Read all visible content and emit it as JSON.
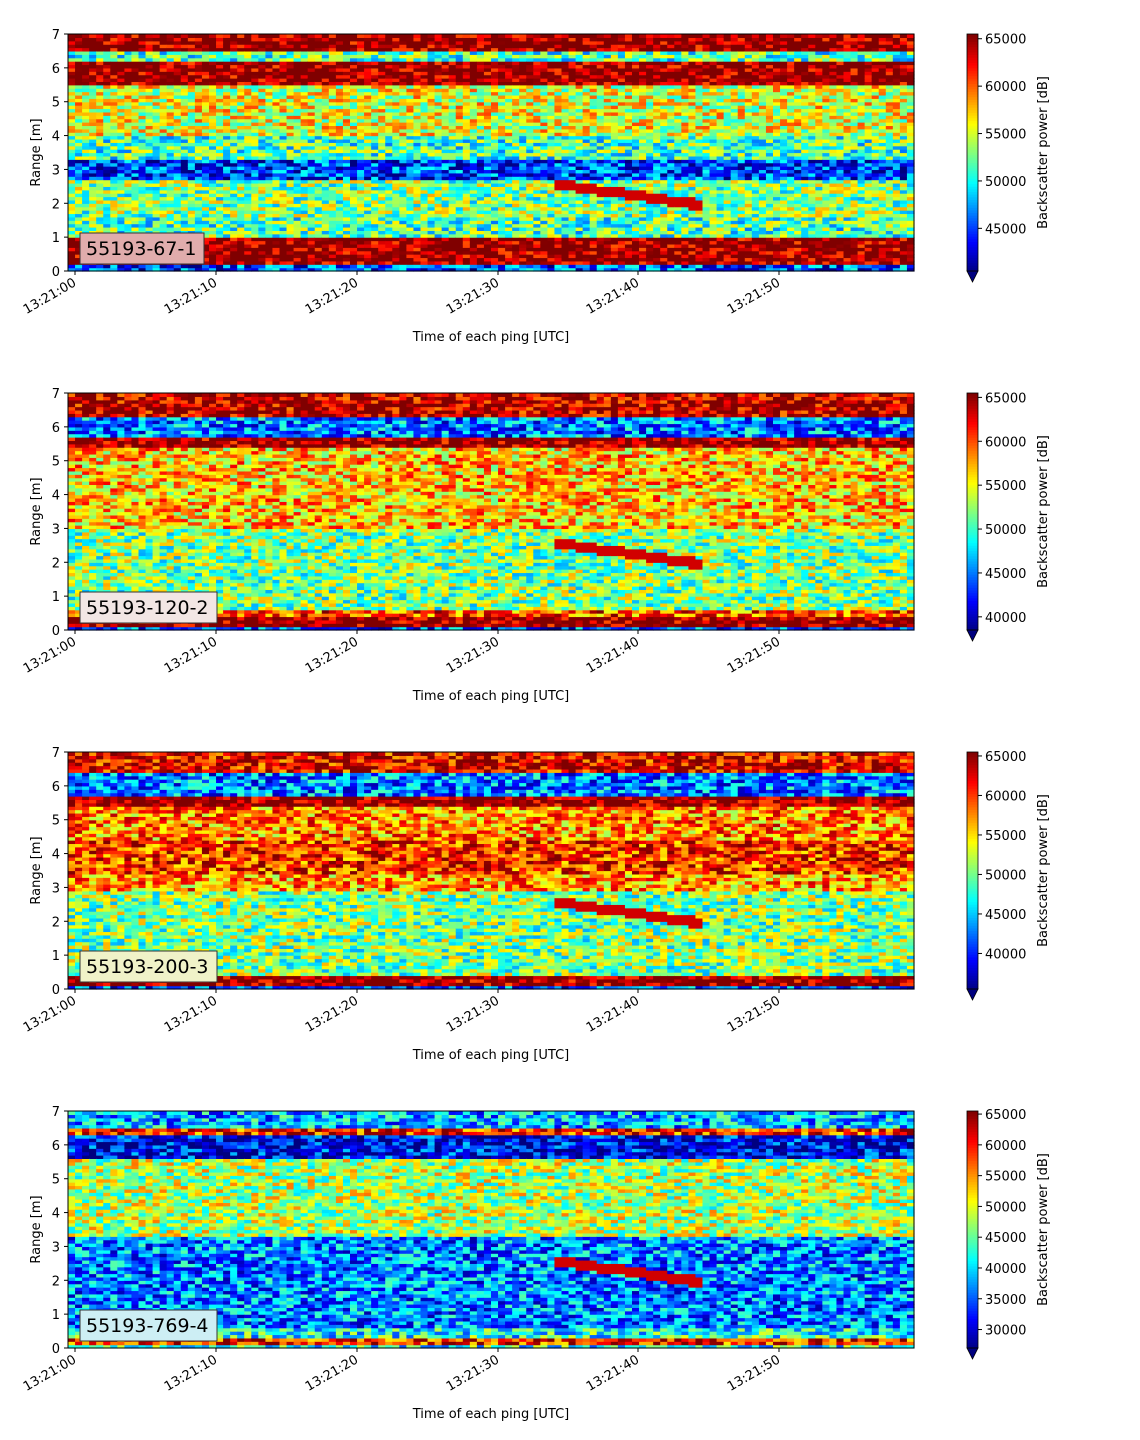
{
  "chart_data": [
    {
      "type": "heatmap",
      "label": "55193-67-1",
      "label_box_color": "#e0acac",
      "x_label": "Time of each ping [UTC]",
      "y_label": "Range [m]",
      "x_ticks": [
        "13:21:00",
        "13:21:10",
        "13:21:20",
        "13:21:30",
        "13:21:40",
        "13:21:50"
      ],
      "y_ticks": [
        "0",
        "1",
        "2",
        "3",
        "4",
        "5",
        "6",
        "7"
      ],
      "ylim": [
        0,
        7
      ],
      "colorbar": {
        "label": "Backscatter power [dB]",
        "ticks": [
          "45000",
          "50000",
          "55000",
          "60000",
          "65000"
        ],
        "range": [
          40500,
          65500
        ]
      },
      "profile": "p1"
    },
    {
      "type": "heatmap",
      "label": "55193-120-2",
      "label_box_color": "#f2e6e4",
      "x_label": "Time of each ping [UTC]",
      "y_label": "Range [m]",
      "x_ticks": [
        "13:21:00",
        "13:21:10",
        "13:21:20",
        "13:21:30",
        "13:21:40",
        "13:21:50"
      ],
      "y_ticks": [
        "0",
        "1",
        "2",
        "3",
        "4",
        "5",
        "6",
        "7"
      ],
      "ylim": [
        0,
        7
      ],
      "colorbar": {
        "label": "Backscatter power [dB]",
        "ticks": [
          "40000",
          "45000",
          "50000",
          "55000",
          "60000",
          "65000"
        ],
        "range": [
          38500,
          65500
        ]
      },
      "profile": "p2"
    },
    {
      "type": "heatmap",
      "label": "55193-200-3",
      "label_box_color": "#f0f2c8",
      "x_label": "Time of each ping [UTC]",
      "y_label": "Range [m]",
      "x_ticks": [
        "13:21:00",
        "13:21:10",
        "13:21:20",
        "13:21:30",
        "13:21:40",
        "13:21:50"
      ],
      "y_ticks": [
        "0",
        "1",
        "2",
        "3",
        "4",
        "5",
        "6",
        "7"
      ],
      "ylim": [
        0,
        7
      ],
      "colorbar": {
        "label": "Backscatter power [dB]",
        "ticks": [
          "40000",
          "45000",
          "50000",
          "55000",
          "60000",
          "65000"
        ],
        "range": [
          35500,
          65500
        ]
      },
      "profile": "p3"
    },
    {
      "type": "heatmap",
      "label": "55193-769-4",
      "label_box_color": "#cdeef4",
      "x_label": "Time of each ping [UTC]",
      "y_label": "Range [m]",
      "x_ticks": [
        "13:21:00",
        "13:21:10",
        "13:21:20",
        "13:21:30",
        "13:21:40",
        "13:21:50"
      ],
      "y_ticks": [
        "0",
        "1",
        "2",
        "3",
        "4",
        "5",
        "6",
        "7"
      ],
      "ylim": [
        0,
        7
      ],
      "colorbar": {
        "label": "Backscatter power [dB]",
        "ticks": [
          "30000",
          "35000",
          "40000",
          "45000",
          "50000",
          "55000",
          "60000",
          "65000"
        ],
        "range": [
          27000,
          65500
        ]
      },
      "profile": "p4"
    }
  ]
}
